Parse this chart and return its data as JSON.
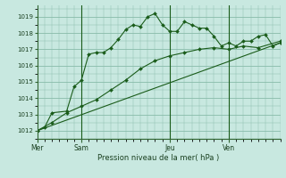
{
  "background_color": "#c8e8e0",
  "plot_bg_color": "#c8e8e0",
  "grid_color": "#88bbaa",
  "line_color": "#1a5c1a",
  "marker_color": "#1a5c1a",
  "xlabel": "Pression niveau de la mer( hPa )",
  "yticks": [
    1012,
    1013,
    1014,
    1015,
    1016,
    1017,
    1018,
    1019
  ],
  "ylim": [
    1011.5,
    1019.7
  ],
  "day_ticks": [
    "Mer",
    "Sam",
    "Jeu",
    "Ven"
  ],
  "day_positions": [
    0,
    6,
    18,
    26
  ],
  "xlim": [
    0,
    33
  ],
  "vline_positions": [
    6,
    18,
    26
  ],
  "line1_x": [
    0,
    1,
    2,
    4,
    5,
    6,
    7,
    8,
    9,
    10,
    11,
    12,
    13,
    14,
    15,
    16,
    17,
    18,
    19,
    20,
    21,
    22,
    23,
    24,
    25,
    26,
    27,
    28,
    29,
    30,
    31,
    32,
    33
  ],
  "line1_y": [
    1012.0,
    1012.2,
    1013.1,
    1013.2,
    1014.7,
    1015.1,
    1016.7,
    1016.8,
    1016.8,
    1017.1,
    1017.6,
    1018.2,
    1018.5,
    1018.4,
    1019.0,
    1019.2,
    1018.5,
    1018.1,
    1018.1,
    1018.7,
    1018.5,
    1018.3,
    1018.3,
    1017.8,
    1017.2,
    1017.4,
    1017.2,
    1017.5,
    1017.5,
    1017.8,
    1017.9,
    1017.2,
    1017.4
  ],
  "line2_x": [
    0,
    2,
    4,
    6,
    8,
    10,
    12,
    14,
    16,
    18,
    20,
    22,
    24,
    26,
    28,
    30,
    33
  ],
  "line2_y": [
    1012.0,
    1012.5,
    1013.1,
    1013.5,
    1013.9,
    1014.5,
    1015.1,
    1015.8,
    1016.3,
    1016.6,
    1016.8,
    1017.0,
    1017.1,
    1017.0,
    1017.2,
    1017.1,
    1017.5
  ],
  "line3_x": [
    0,
    33
  ],
  "line3_y": [
    1012.0,
    1017.4
  ]
}
